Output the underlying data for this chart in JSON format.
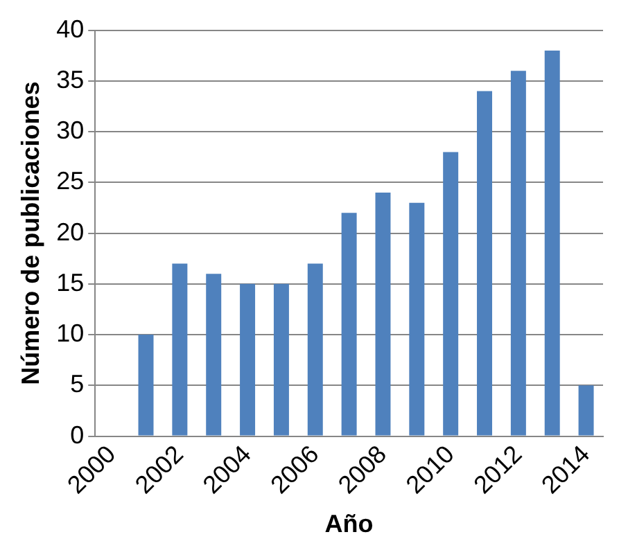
{
  "chart_data": {
    "type": "bar",
    "xlabel": "Año",
    "ylabel": "Número de publicaciones",
    "categories": [
      "2000",
      null,
      "2002",
      null,
      "2004",
      null,
      "2006",
      null,
      "2008",
      null,
      "2010",
      null,
      "2012",
      null,
      "2014"
    ],
    "values": [
      null,
      10,
      17,
      16,
      15,
      15,
      17,
      22,
      24,
      23,
      28,
      34,
      36,
      38,
      5
    ],
    "color": "#4f81bd",
    "ylim": [
      0,
      40
    ],
    "yticks": [
      0,
      5,
      10,
      15,
      20,
      25,
      30,
      35,
      40
    ],
    "grid": "y",
    "legend": false
  }
}
